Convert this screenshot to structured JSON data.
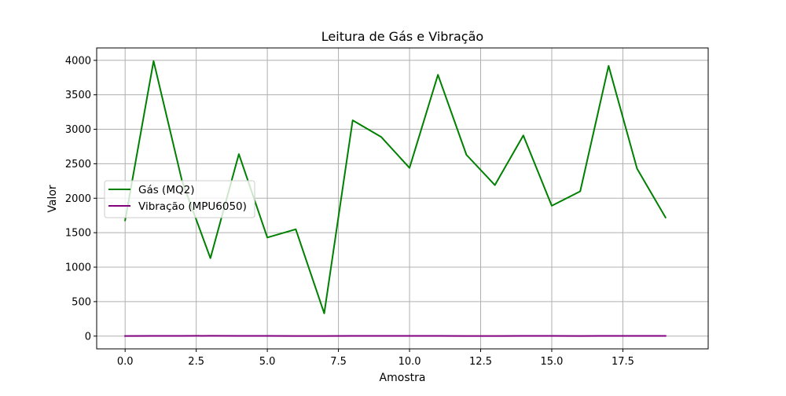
{
  "chart_data": {
    "type": "line",
    "title": "Leitura de Gás e Vibração",
    "xlabel": "Amostra",
    "ylabel": "Valor",
    "x": [
      0,
      1,
      2,
      3,
      4,
      5,
      6,
      7,
      8,
      9,
      10,
      11,
      12,
      13,
      14,
      15,
      16,
      17,
      18,
      19
    ],
    "xlim": [
      -1,
      20.5
    ],
    "ylim": [
      -185,
      4180
    ],
    "xticks": [
      0.0,
      2.5,
      5.0,
      7.5,
      10.0,
      12.5,
      15.0,
      17.5
    ],
    "xtick_labels": [
      "0.0",
      "2.5",
      "5.0",
      "7.5",
      "10.0",
      "12.5",
      "15.0",
      "17.5"
    ],
    "yticks": [
      0,
      500,
      1000,
      1500,
      2000,
      2500,
      3000,
      3500,
      4000
    ],
    "ytick_labels": [
      "0",
      "500",
      "1000",
      "1500",
      "2000",
      "2500",
      "3000",
      "3500",
      "4000"
    ],
    "grid": true,
    "legend_position": "center-left",
    "series": [
      {
        "name": "Gás (MQ2)",
        "color": "#008000",
        "values": [
          1680,
          3990,
          2250,
          1130,
          2640,
          1430,
          1550,
          330,
          3130,
          2890,
          2440,
          3790,
          2630,
          2190,
          2910,
          1890,
          2100,
          3920,
          2430,
          1720
        ]
      },
      {
        "name": "Vibração (MPU6050)",
        "color": "#800080",
        "values": [
          2,
          3,
          3,
          4,
          3,
          3,
          2,
          2,
          3,
          3,
          3,
          3,
          2,
          2,
          3,
          3,
          2,
          3,
          3,
          3
        ]
      }
    ]
  }
}
